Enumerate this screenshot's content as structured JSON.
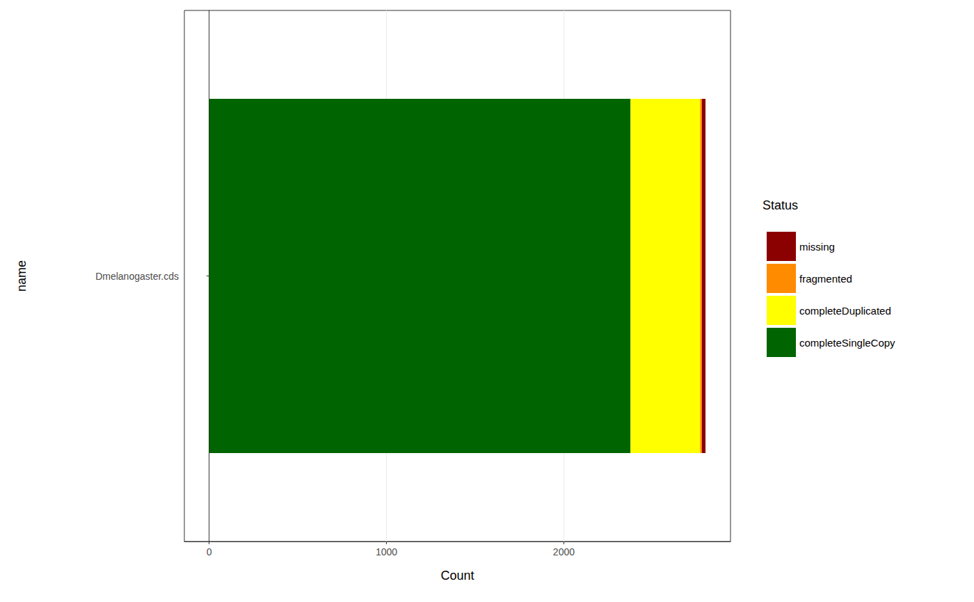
{
  "chart_data": {
    "type": "bar",
    "orientation": "horizontal",
    "stacked": true,
    "x_label": "Count",
    "y_label": "name",
    "legend_title": "Status",
    "legend": "right",
    "categories": [
      "Dmelanogaster.cds"
    ],
    "series": [
      {
        "name": "completeSingleCopy",
        "color": "#006400",
        "values": [
          2376
        ]
      },
      {
        "name": "completeDuplicated",
        "color": "#ffff00",
        "values": [
          393
        ]
      },
      {
        "name": "fragmented",
        "color": "#ff8c00",
        "values": [
          10
        ]
      },
      {
        "name": "missing",
        "color": "#8b0000",
        "values": [
          20
        ]
      }
    ],
    "xlim": [
      -140,
      2940
    ],
    "xticks": [
      0,
      1000,
      2000
    ],
    "grid": true
  }
}
